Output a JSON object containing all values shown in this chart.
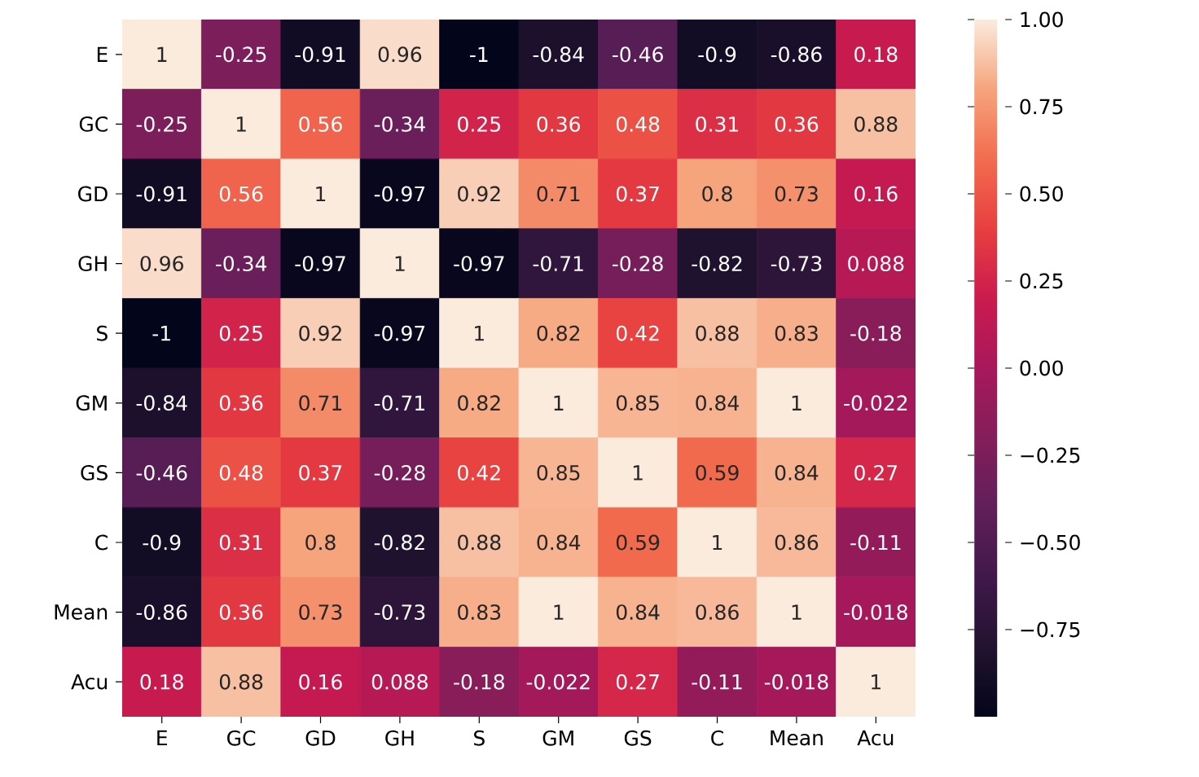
{
  "chart_data": {
    "type": "heatmap",
    "categories": [
      "E",
      "GC",
      "GD",
      "GH",
      "S",
      "GM",
      "GS",
      "C",
      "Mean",
      "Acu"
    ],
    "y_categories": [
      "E",
      "GC",
      "GD",
      "GH",
      "S",
      "GM",
      "GS",
      "C",
      "Mean",
      "Acu"
    ],
    "cells": [
      [
        1,
        -0.25,
        -0.91,
        0.96,
        -1,
        -0.84,
        -0.46,
        -0.9,
        -0.86,
        0.18
      ],
      [
        -0.25,
        1,
        0.56,
        -0.34,
        0.25,
        0.36,
        0.48,
        0.31,
        0.36,
        0.88
      ],
      [
        -0.91,
        0.56,
        1,
        -0.97,
        0.92,
        0.71,
        0.37,
        0.8,
        0.73,
        0.16
      ],
      [
        0.96,
        -0.34,
        -0.97,
        1,
        -0.97,
        -0.71,
        -0.28,
        -0.82,
        -0.73,
        0.088
      ],
      [
        -1,
        0.25,
        0.92,
        -0.97,
        1,
        0.82,
        0.42,
        0.88,
        0.83,
        -0.18
      ],
      [
        -0.84,
        0.36,
        0.71,
        -0.71,
        0.82,
        1,
        0.85,
        0.84,
        1,
        -0.022
      ],
      [
        -0.46,
        0.48,
        0.37,
        -0.28,
        0.42,
        0.85,
        1,
        0.59,
        0.84,
        0.27
      ],
      [
        -0.9,
        0.31,
        0.8,
        -0.82,
        0.88,
        0.84,
        0.59,
        1,
        0.86,
        -0.11
      ],
      [
        -0.86,
        0.36,
        0.73,
        -0.73,
        0.83,
        1,
        0.84,
        0.86,
        1,
        -0.018
      ],
      [
        0.18,
        0.88,
        0.16,
        0.088,
        -0.18,
        -0.022,
        0.27,
        -0.11,
        -0.018,
        1
      ]
    ],
    "clim": [
      -1,
      1
    ],
    "cticks": [
      {
        "value": -0.75,
        "label": "−0.75"
      },
      {
        "value": -0.5,
        "label": "−0.50"
      },
      {
        "value": -0.25,
        "label": "−0.25"
      },
      {
        "value": 0,
        "label": "0.00"
      },
      {
        "value": 0.25,
        "label": "0.25"
      },
      {
        "value": 0.5,
        "label": "0.50"
      },
      {
        "value": 0.75,
        "label": "0.75"
      },
      {
        "value": 1,
        "label": "1.00"
      }
    ],
    "data_labels": true
  }
}
